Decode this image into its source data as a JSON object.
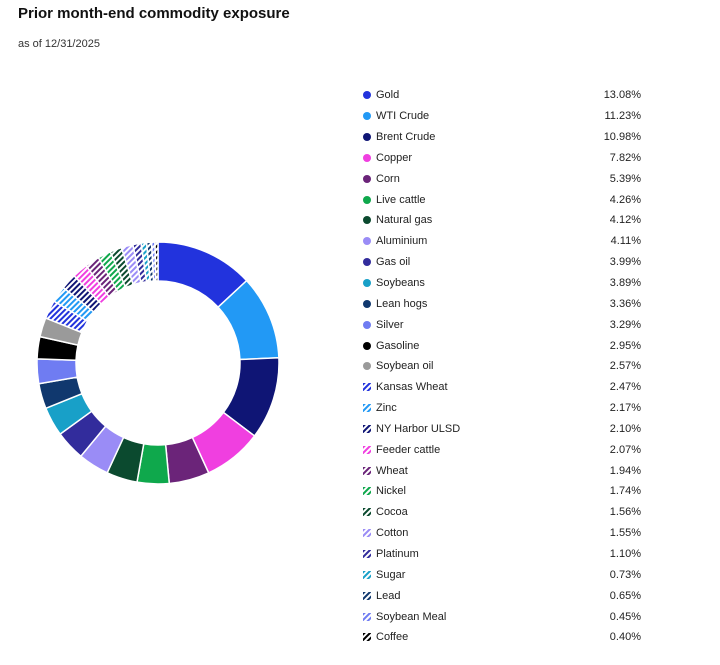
{
  "title": "Prior month-end commodity exposure",
  "subtitle": "as of 12/31/2025",
  "chart_data": {
    "type": "pie",
    "variant": "donut",
    "legend_position": "right",
    "series": [
      {
        "name": "Gold",
        "value": 13.08,
        "label": "13.08%",
        "color": "#2233dd",
        "pattern": "solid"
      },
      {
        "name": "WTI Crude",
        "value": 11.23,
        "label": "11.23%",
        "color": "#2299f5",
        "pattern": "solid"
      },
      {
        "name": "Brent Crude",
        "value": 10.98,
        "label": "10.98%",
        "color": "#0f1575",
        "pattern": "solid"
      },
      {
        "name": "Copper",
        "value": 7.82,
        "label": "7.82%",
        "color": "#f03fe0",
        "pattern": "solid"
      },
      {
        "name": "Corn",
        "value": 5.39,
        "label": "5.39%",
        "color": "#6b2479",
        "pattern": "solid"
      },
      {
        "name": "Live cattle",
        "value": 4.26,
        "label": "4.26%",
        "color": "#0fa84c",
        "pattern": "solid"
      },
      {
        "name": "Natural gas",
        "value": 4.12,
        "label": "4.12%",
        "color": "#0b4a2f",
        "pattern": "solid"
      },
      {
        "name": "Aluminium",
        "value": 4.11,
        "label": "4.11%",
        "color": "#9a8cf6",
        "pattern": "solid"
      },
      {
        "name": "Gas oil",
        "value": 3.99,
        "label": "3.99%",
        "color": "#322c9c",
        "pattern": "solid"
      },
      {
        "name": "Soybeans",
        "value": 3.89,
        "label": "3.89%",
        "color": "#18a0c8",
        "pattern": "solid"
      },
      {
        "name": "Lean hogs",
        "value": 3.36,
        "label": "3.36%",
        "color": "#10386e",
        "pattern": "solid"
      },
      {
        "name": "Silver",
        "value": 3.29,
        "label": "3.29%",
        "color": "#6f7cf2",
        "pattern": "solid"
      },
      {
        "name": "Gasoline",
        "value": 2.95,
        "label": "2.95%",
        "color": "#000000",
        "pattern": "solid"
      },
      {
        "name": "Soybean oil",
        "value": 2.57,
        "label": "2.57%",
        "color": "#9a9a9a",
        "pattern": "solid"
      },
      {
        "name": "Kansas Wheat",
        "value": 2.47,
        "label": "2.47%",
        "color": "#2233dd",
        "pattern": "hatched"
      },
      {
        "name": "Zinc",
        "value": 2.17,
        "label": "2.17%",
        "color": "#2299f5",
        "pattern": "hatched"
      },
      {
        "name": "NY Harbor ULSD",
        "value": 2.1,
        "label": "2.10%",
        "color": "#0f1575",
        "pattern": "hatched"
      },
      {
        "name": "Feeder cattle",
        "value": 2.07,
        "label": "2.07%",
        "color": "#f03fe0",
        "pattern": "hatched"
      },
      {
        "name": "Wheat",
        "value": 1.94,
        "label": "1.94%",
        "color": "#6b2479",
        "pattern": "hatched"
      },
      {
        "name": "Nickel",
        "value": 1.74,
        "label": "1.74%",
        "color": "#0fa84c",
        "pattern": "hatched"
      },
      {
        "name": "Cocoa",
        "value": 1.56,
        "label": "1.56%",
        "color": "#0b4a2f",
        "pattern": "hatched"
      },
      {
        "name": "Cotton",
        "value": 1.55,
        "label": "1.55%",
        "color": "#9a8cf6",
        "pattern": "hatched"
      },
      {
        "name": "Platinum",
        "value": 1.1,
        "label": "1.10%",
        "color": "#322c9c",
        "pattern": "hatched"
      },
      {
        "name": "Sugar",
        "value": 0.73,
        "label": "0.73%",
        "color": "#18a0c8",
        "pattern": "hatched"
      },
      {
        "name": "Lead",
        "value": 0.65,
        "label": "0.65%",
        "color": "#10386e",
        "pattern": "hatched"
      },
      {
        "name": "Soybean Meal",
        "value": 0.45,
        "label": "0.45%",
        "color": "#6f7cf2",
        "pattern": "hatched"
      },
      {
        "name": "Coffee",
        "value": 0.4,
        "label": "0.40%",
        "color": "#000000",
        "pattern": "hatched"
      }
    ]
  }
}
